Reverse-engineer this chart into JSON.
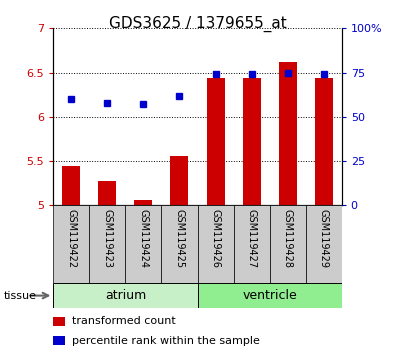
{
  "title": "GDS3625 / 1379655_at",
  "samples": [
    "GSM119422",
    "GSM119423",
    "GSM119424",
    "GSM119425",
    "GSM119426",
    "GSM119427",
    "GSM119428",
    "GSM119429"
  ],
  "transformed_count": [
    5.44,
    5.27,
    5.06,
    5.56,
    6.44,
    6.44,
    6.62,
    6.44
  ],
  "percentile_rank": [
    60,
    58,
    57,
    62,
    74,
    74,
    75,
    74
  ],
  "bar_baseline": 5.0,
  "ylim_left": [
    5.0,
    7.0
  ],
  "ylim_right": [
    0,
    100
  ],
  "yticks_left": [
    5.0,
    5.5,
    6.0,
    6.5,
    7.0
  ],
  "ytick_labels_left": [
    "5",
    "5.5",
    "6",
    "6.5",
    "7"
  ],
  "yticks_right": [
    0,
    25,
    50,
    75,
    100
  ],
  "ytick_labels_right": [
    "0",
    "25",
    "50",
    "75",
    "100%"
  ],
  "groups": [
    {
      "label": "atrium",
      "indices": [
        0,
        1,
        2,
        3
      ],
      "color": "#c8f0c8"
    },
    {
      "label": "ventricle",
      "indices": [
        4,
        5,
        6,
        7
      ],
      "color": "#90ee90"
    }
  ],
  "bar_color": "#cc0000",
  "dot_color": "#0000cc",
  "left_axis_color": "#cc0000",
  "right_axis_color": "#0000cc",
  "bar_width": 0.5,
  "dot_size": 4,
  "tissue_label": "tissue",
  "sample_row_bg": "#cccccc",
  "legend_items": [
    {
      "color": "#cc0000",
      "label": "transformed count"
    },
    {
      "color": "#0000cc",
      "label": "percentile rank within the sample"
    }
  ]
}
